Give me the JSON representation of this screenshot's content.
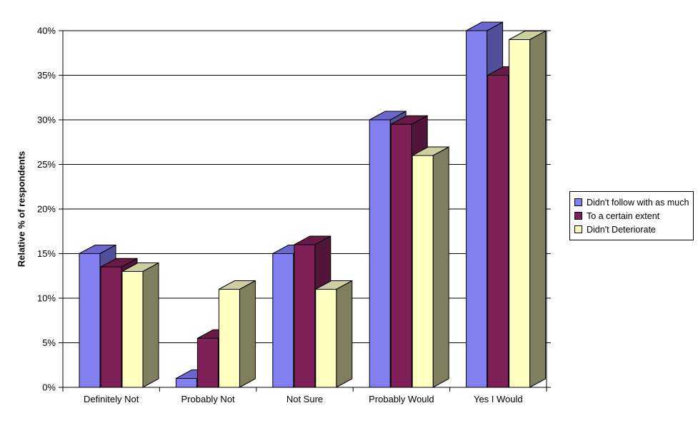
{
  "chart_data": {
    "type": "bar",
    "variant": "3d-clustered-column",
    "title": "",
    "xlabel": "",
    "ylabel": "Relative % of respondents",
    "categories": [
      "Definitely Not",
      "Probably Not",
      "Not Sure",
      "Probably Would",
      "Yes I Would"
    ],
    "series": [
      {
        "name": "Didn't follow with as much",
        "values": [
          15,
          1,
          15,
          30,
          40
        ],
        "color_front": "#8280F0",
        "color_top": "#6A68CE",
        "color_side": "#50509A"
      },
      {
        "name": "To a certain extent",
        "values": [
          13.5,
          5.5,
          16,
          29.5,
          35
        ],
        "color_front": "#7E2057",
        "color_top": "#671A47",
        "color_side": "#511539"
      },
      {
        "name": "Didn't Deteriorate",
        "values": [
          13,
          11,
          11,
          26,
          39
        ],
        "color_front": "#FFFFC2",
        "color_top": "#CECE9E",
        "color_side": "#7F7F60"
      }
    ],
    "ylim": [
      0,
      40
    ],
    "ytick_step": 5,
    "ytick_labels": [
      "0%",
      "5%",
      "10%",
      "15%",
      "20%",
      "25%",
      "30%",
      "35%",
      "40%"
    ],
    "grid": true,
    "legend_position": "right",
    "axis_color": "#000000",
    "background_color": "#FFFFFF"
  }
}
